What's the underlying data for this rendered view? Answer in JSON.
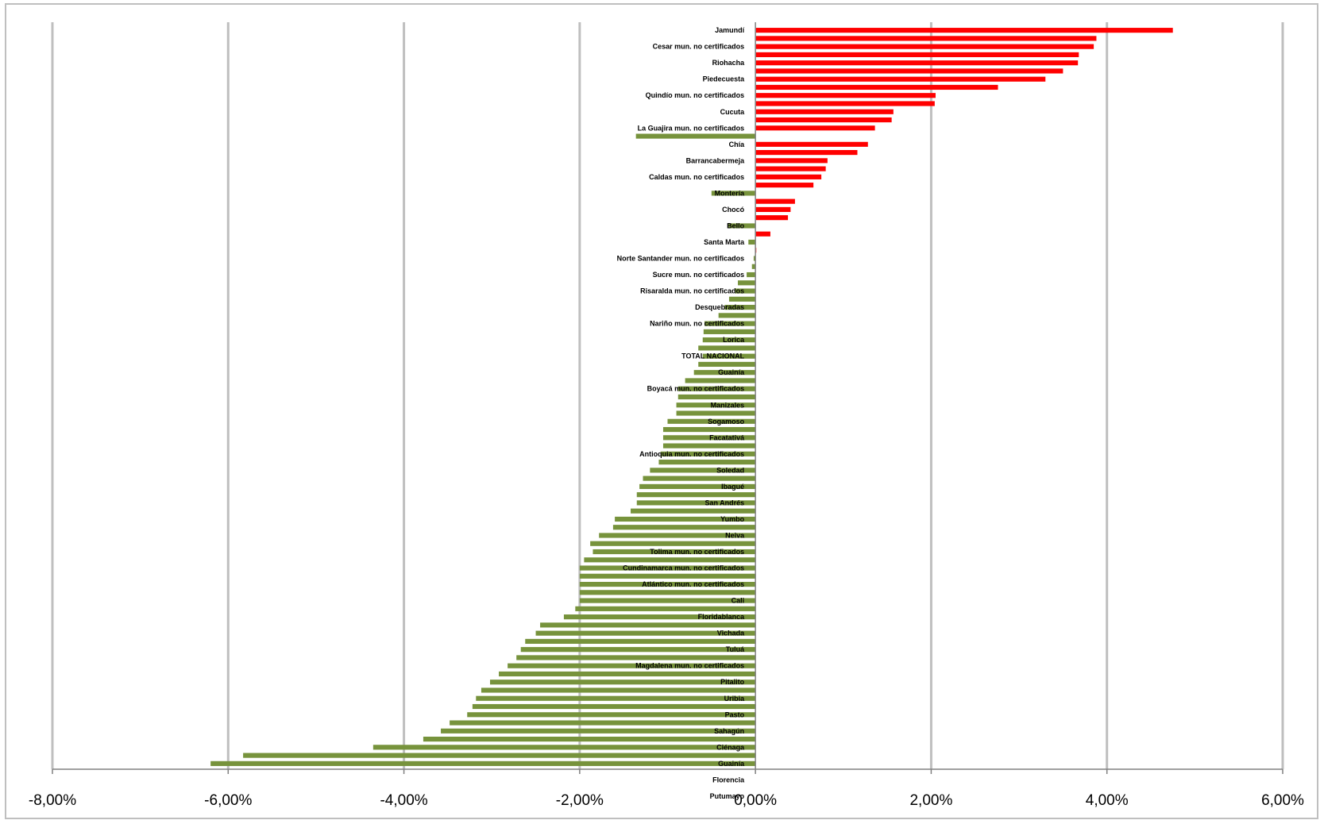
{
  "chart_data": {
    "type": "bar",
    "orientation": "horizontal",
    "title": "",
    "xlabel": "",
    "ylabel": "",
    "xlim": [
      -0.08,
      0.06
    ],
    "x_ticks": [
      "-8,00%",
      "-6,00%",
      "-4,00%",
      "-2,00%",
      "0,00%",
      "2,00%",
      "4,00%",
      "6,00%"
    ],
    "grid": "vertical",
    "legend": "none",
    "colors": {
      "positive": "#ff0000",
      "negative": "#77933c",
      "grid": "#bfbfbf",
      "axis": "#808080"
    },
    "bar_values": [
      0.0475,
      0.0388,
      0.0385,
      0.0368,
      0.0367,
      0.035,
      0.033,
      0.0276,
      0.0205,
      0.0204,
      0.0157,
      0.0155,
      0.0136,
      -0.0136,
      0.0128,
      0.0116,
      0.0082,
      0.008,
      0.0075,
      0.0066,
      -0.005,
      0.0045,
      0.004,
      0.0037,
      -0.0031,
      0.0017,
      -0.0008,
      0.0001,
      -0.0002,
      -0.0004,
      -0.001,
      -0.002,
      -0.0023,
      -0.003,
      -0.0035,
      -0.0042,
      -0.0058,
      -0.0059,
      -0.006,
      -0.0065,
      -0.006,
      -0.0065,
      -0.007,
      -0.008,
      -0.0088,
      -0.0088,
      -0.009,
      -0.009,
      -0.01,
      -0.0105,
      -0.0105,
      -0.0105,
      -0.0108,
      -0.011,
      -0.012,
      -0.0128,
      -0.0132,
      -0.0135,
      -0.0135,
      -0.0142,
      -0.016,
      -0.0162,
      -0.0178,
      -0.0188,
      -0.0185,
      -0.0195,
      -0.02,
      -0.02,
      -0.02,
      -0.02,
      -0.02,
      -0.0205,
      -0.0218,
      -0.0245,
      -0.025,
      -0.0262,
      -0.0267,
      -0.0272,
      -0.0282,
      -0.0292,
      -0.0302,
      -0.0312,
      -0.0318,
      -0.0322,
      -0.0328,
      -0.0348,
      -0.0358,
      -0.0378,
      -0.0435,
      -0.0583,
      -0.062
    ],
    "bar_labels": [
      "Jamundí",
      "",
      "Cesar mun. no certificados",
      "",
      "Riohacha",
      "",
      "Piedecuesta",
      "",
      "Quindío mun. no certificados",
      "",
      "Cucuta",
      "",
      "La Guajira mun. no certificados",
      "",
      "Chía",
      "",
      "Barrancabermeja",
      "",
      "Caldas mun. no certificados",
      "",
      "Montería",
      "",
      "Chocó",
      "",
      "Bello",
      "",
      "Santa Marta",
      "",
      "Norte Santander mun. no certificados",
      "",
      "Sucre mun. no certificados",
      "",
      "Risaralda mun. no certificados",
      "",
      "Desquebradas",
      "",
      "Nariño mun. no certificados",
      "",
      "Lorica",
      "",
      "TOTAL NACIONAL",
      "",
      "Guainía",
      "",
      "Boyacá mun. no certificados",
      "",
      "Manizales",
      "",
      "Sogamoso",
      "",
      "Facatativá",
      "",
      "Antioquia mun. no certificados",
      "",
      "Soledad",
      "",
      "Ibagué",
      "",
      "San Andrés",
      "",
      "Yumbo",
      "",
      "Neiva",
      "",
      "Tolima mun. no certificados",
      "",
      "Cundinamarca mun. no certificados",
      "",
      "Atlántico mun. no certificados",
      "",
      "Cali",
      "",
      "Floridablanca",
      "",
      "Vichada",
      "",
      "Tuluá",
      "",
      "Magdalena mun. no certificados",
      "",
      "Pitalito",
      "",
      "Uribia",
      "",
      "Pasto",
      "",
      "Sahagún",
      "",
      "Ciénaga",
      "",
      "Guainía",
      "",
      "Florencia",
      "",
      "Putumayo"
    ]
  }
}
